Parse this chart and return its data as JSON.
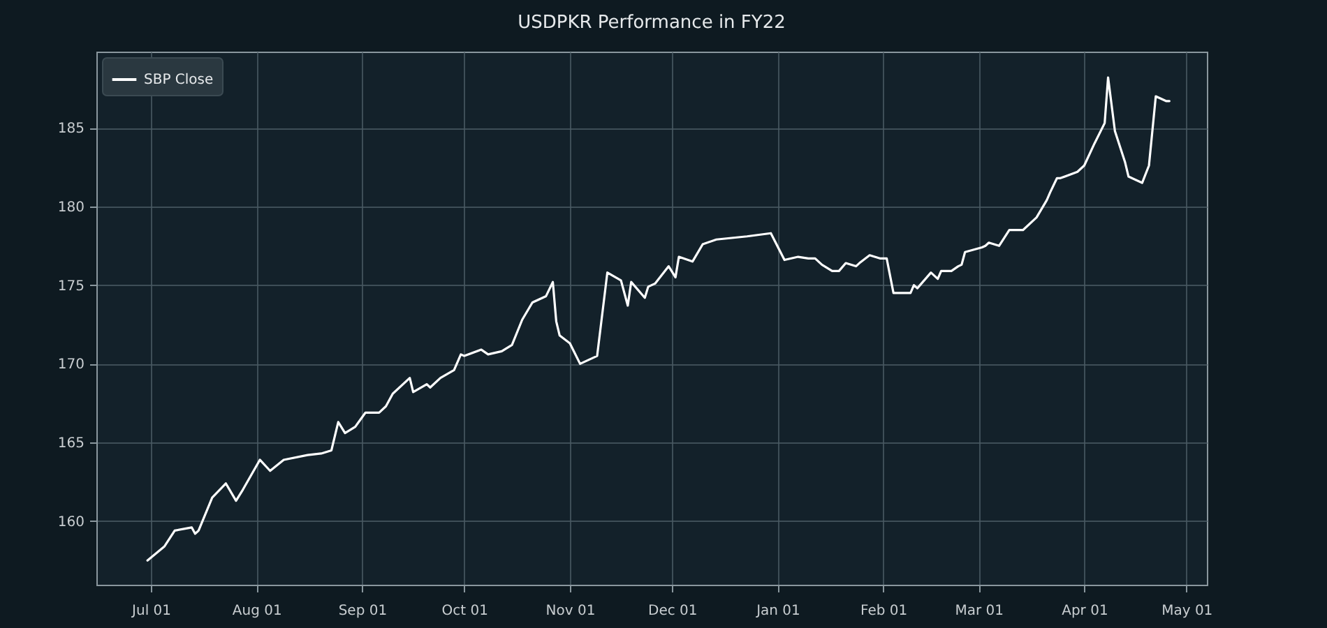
{
  "chart_data": {
    "type": "line",
    "title": "USDPKR Performance in FY22",
    "x": [
      "2021-06-30",
      "2021-07-05",
      "2021-07-08",
      "2021-07-13",
      "2021-07-14",
      "2021-07-15",
      "2021-07-19",
      "2021-07-23",
      "2021-07-26",
      "2021-07-28",
      "2021-08-02",
      "2021-08-05",
      "2021-08-09",
      "2021-08-16",
      "2021-08-20",
      "2021-08-23",
      "2021-08-25",
      "2021-08-27",
      "2021-08-30",
      "2021-09-02",
      "2021-09-06",
      "2021-09-08",
      "2021-09-10",
      "2021-09-15",
      "2021-09-16",
      "2021-09-20",
      "2021-09-21",
      "2021-09-24",
      "2021-09-28",
      "2021-09-30",
      "2021-10-01",
      "2021-10-06",
      "2021-10-08",
      "2021-10-12",
      "2021-10-15",
      "2021-10-18",
      "2021-10-21",
      "2021-10-25",
      "2021-10-27",
      "2021-10-28",
      "2021-10-29",
      "2021-11-01",
      "2021-11-04",
      "2021-11-05",
      "2021-11-09",
      "2021-11-12",
      "2021-11-16",
      "2021-11-18",
      "2021-11-19",
      "2021-11-23",
      "2021-11-24",
      "2021-11-26",
      "2021-11-30",
      "2021-12-02",
      "2021-12-03",
      "2021-12-07",
      "2021-12-10",
      "2021-12-14",
      "2021-12-23",
      "2021-12-30",
      "2022-01-03",
      "2022-01-07",
      "2022-01-10",
      "2022-01-12",
      "2022-01-14",
      "2022-01-17",
      "2022-01-19",
      "2022-01-21",
      "2022-01-24",
      "2022-01-25",
      "2022-01-28",
      "2022-01-31",
      "2022-02-02",
      "2022-02-04",
      "2022-02-09",
      "2022-02-10",
      "2022-02-11",
      "2022-02-15",
      "2022-02-17",
      "2022-02-18",
      "2022-02-21",
      "2022-02-23",
      "2022-02-24",
      "2022-02-25",
      "2022-03-02",
      "2022-03-03",
      "2022-03-04",
      "2022-03-07",
      "2022-03-10",
      "2022-03-14",
      "2022-03-18",
      "2022-03-21",
      "2022-03-22",
      "2022-03-24",
      "2022-03-25",
      "2022-03-30",
      "2022-04-01",
      "2022-04-04",
      "2022-04-07",
      "2022-04-08",
      "2022-04-10",
      "2022-04-13",
      "2022-04-14",
      "2022-04-18",
      "2022-04-20",
      "2022-04-22",
      "2022-04-25",
      "2022-04-26"
    ],
    "series": [
      {
        "name": "SBP Close",
        "color": "#ffffff",
        "values": [
          157.5,
          158.4,
          159.4,
          159.6,
          159.2,
          159.4,
          161.5,
          162.4,
          161.3,
          162.0,
          163.9,
          163.2,
          163.9,
          164.2,
          164.3,
          164.5,
          166.3,
          165.6,
          166.0,
          166.9,
          166.9,
          167.3,
          168.1,
          169.1,
          168.2,
          168.7,
          168.5,
          169.1,
          169.6,
          170.6,
          170.5,
          170.9,
          170.6,
          170.8,
          171.2,
          172.8,
          173.9,
          174.3,
          175.2,
          172.7,
          171.8,
          171.3,
          170.0,
          170.1,
          170.5,
          175.8,
          175.3,
          173.7,
          175.2,
          174.2,
          174.9,
          175.1,
          176.2,
          175.5,
          176.8,
          176.5,
          177.6,
          177.9,
          178.1,
          178.3,
          176.6,
          176.8,
          176.7,
          176.7,
          176.3,
          175.9,
          175.9,
          176.4,
          176.2,
          176.4,
          176.9,
          176.7,
          176.7,
          174.5,
          174.5,
          175.0,
          174.8,
          175.8,
          175.4,
          175.9,
          175.9,
          176.2,
          176.3,
          177.1,
          177.4,
          177.5,
          177.7,
          177.5,
          178.5,
          178.5,
          179.3,
          180.4,
          180.9,
          181.8,
          181.8,
          182.2,
          182.6,
          184.0,
          185.3,
          188.2,
          184.8,
          182.8,
          181.9,
          181.5,
          182.6,
          187.0,
          186.7,
          186.7
        ]
      }
    ],
    "xlim": [
      "2021-06-15",
      "2022-05-07"
    ],
    "xticks": [
      {
        "value": "2021-07-01",
        "label": "Jul 01"
      },
      {
        "value": "2021-08-01",
        "label": "Aug 01"
      },
      {
        "value": "2021-09-01",
        "label": "Sep 01"
      },
      {
        "value": "2021-10-01",
        "label": "Oct 01"
      },
      {
        "value": "2021-11-01",
        "label": "Nov 01"
      },
      {
        "value": "2021-12-01",
        "label": "Dec 01"
      },
      {
        "value": "2022-01-01",
        "label": "Jan 01"
      },
      {
        "value": "2022-02-01",
        "label": "Feb 01"
      },
      {
        "value": "2022-03-01",
        "label": "Mar 01"
      },
      {
        "value": "2022-04-01",
        "label": "Apr 01"
      },
      {
        "value": "2022-05-01",
        "label": "May 01"
      }
    ],
    "ylim": [
      155.96,
      189.84
    ],
    "yticks": [
      160,
      165,
      170,
      175,
      180,
      185
    ],
    "grid": true,
    "legend": "top left",
    "marker": "none",
    "line_style": "solid"
  }
}
